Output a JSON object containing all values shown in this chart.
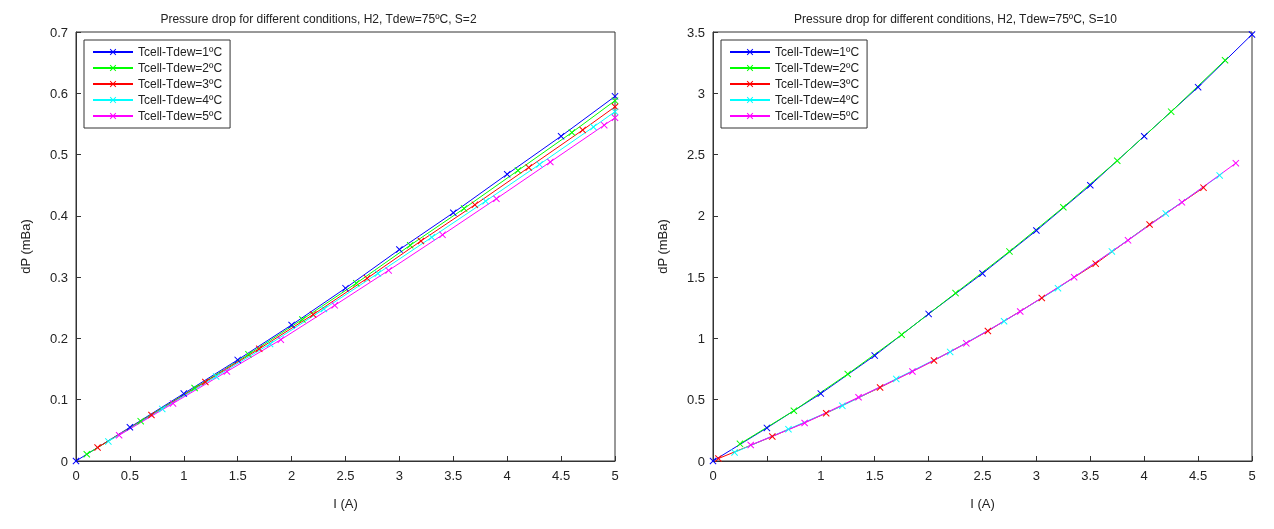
{
  "chart_data": [
    {
      "type": "line",
      "title": "Pressure drop for different conditions, H2, Tdew=75ºC, S=2",
      "xlabel": "I (A)",
      "ylabel": "dP (mBa)",
      "x": [
        0,
        0.5,
        1,
        1.5,
        2,
        2.5,
        3,
        3.5,
        4,
        4.5,
        5
      ],
      "xlim": [
        0,
        5
      ],
      "xticks": [
        0,
        0.5,
        1,
        1.5,
        2,
        2.5,
        3,
        3.5,
        4,
        4.5,
        5
      ],
      "ylim": [
        0,
        0.7
      ],
      "yticks": [
        0,
        0.1,
        0.2,
        0.3,
        0.4,
        0.5,
        0.6,
        0.7
      ],
      "grid": false,
      "legend": "top left",
      "marker": "cross",
      "line_style": "solid",
      "series": [
        {
          "name": "Tcell-Tdew=1ºC",
          "color": "#0000ff",
          "values": [
            0,
            0.055,
            0.11,
            0.165,
            0.222,
            0.282,
            0.345,
            0.405,
            0.468,
            0.53,
            0.595
          ]
        },
        {
          "name": "Tcell-Tdew=2ºC",
          "color": "#00ff00",
          "x": [
            0.1,
            0.6,
            1.1,
            1.6,
            2.1,
            2.6,
            3.1,
            3.6,
            4.1,
            4.6,
            5
          ],
          "values": [
            0.011,
            0.065,
            0.119,
            0.174,
            0.231,
            0.29,
            0.352,
            0.412,
            0.474,
            0.536,
            0.588
          ]
        },
        {
          "name": "Tcell-Tdew=3ºC",
          "color": "#ff0000",
          "x": [
            0.2,
            0.7,
            1.2,
            1.7,
            2.2,
            2.7,
            3.2,
            3.7,
            4.2,
            4.7,
            5
          ],
          "values": [
            0.022,
            0.075,
            0.129,
            0.183,
            0.239,
            0.298,
            0.359,
            0.418,
            0.479,
            0.54,
            0.578
          ]
        },
        {
          "name": "Tcell-Tdew=4ºC",
          "color": "#00ffff",
          "x": [
            0.3,
            0.8,
            1.3,
            1.8,
            2.3,
            2.8,
            3.3,
            3.8,
            4.3,
            4.8,
            5
          ],
          "values": [
            0.032,
            0.085,
            0.138,
            0.191,
            0.248,
            0.306,
            0.365,
            0.424,
            0.484,
            0.545,
            0.57
          ]
        },
        {
          "name": "Tcell-Tdew=5ºC",
          "color": "#ff00ff",
          "x": [
            0.4,
            0.9,
            1.4,
            1.9,
            2.4,
            2.9,
            3.4,
            3.9,
            4.4,
            4.9,
            5
          ],
          "values": [
            0.042,
            0.094,
            0.146,
            0.198,
            0.254,
            0.311,
            0.369,
            0.428,
            0.488,
            0.548,
            0.56
          ]
        }
      ]
    },
    {
      "type": "line",
      "title": "Pressure drop for different conditions, H2, Tdew=75ºC, S=10",
      "xlabel": "I (A)",
      "ylabel": "dP (mBa)",
      "x": [
        0,
        0.5,
        1,
        1.5,
        2,
        2.5,
        3,
        3.5,
        4,
        4.5,
        5
      ],
      "xlim": [
        0,
        5
      ],
      "xticks": [
        0,
        {
          "value": 0.5,
          "label": null
        },
        1,
        1.5,
        2,
        2.5,
        3,
        3.5,
        4,
        4.5,
        5
      ],
      "ylim": [
        0,
        3.5
      ],
      "yticks": [
        0,
        0.5,
        1,
        1.5,
        2,
        2.5,
        3,
        3.5
      ],
      "grid": false,
      "legend": "top left",
      "marker": "cross",
      "line_style": "solid",
      "series": [
        {
          "name": "Tcell-Tdew=1ºC",
          "color": "#0000ff",
          "values": [
            0,
            0.27,
            0.55,
            0.86,
            1.2,
            1.53,
            1.88,
            2.25,
            2.65,
            3.05,
            3.48
          ]
        },
        {
          "name": "Tcell-Tdew=2ºC",
          "color": "#00ff00",
          "x": [
            0.25,
            0.75,
            1.25,
            1.75,
            2.25,
            2.75,
            3.25,
            3.75,
            4.25,
            4.75
          ],
          "values": [
            0.14,
            0.41,
            0.71,
            1.03,
            1.37,
            1.71,
            2.07,
            2.45,
            2.85,
            3.27
          ]
        },
        {
          "name": "Tcell-Tdew=3ºC",
          "color": "#ff0000",
          "x": [
            0.05,
            0.55,
            1.05,
            1.55,
            2.05,
            2.55,
            3.05,
            3.55,
            4.05,
            4.55
          ],
          "values": [
            0.02,
            0.2,
            0.39,
            0.6,
            0.82,
            1.06,
            1.33,
            1.61,
            1.93,
            2.23
          ]
        },
        {
          "name": "Tcell-Tdew=4ºC",
          "color": "#00ffff",
          "x": [
            0.2,
            0.7,
            1.2,
            1.7,
            2.2,
            2.7,
            3.2,
            3.7,
            4.2,
            4.7
          ],
          "values": [
            0.07,
            0.26,
            0.45,
            0.67,
            0.89,
            1.14,
            1.41,
            1.71,
            2.02,
            2.33
          ]
        },
        {
          "name": "Tcell-Tdew=5ºC",
          "color": "#ff00ff",
          "x": [
            0.35,
            0.85,
            1.35,
            1.85,
            2.35,
            2.85,
            3.35,
            3.85,
            4.35,
            4.85
          ],
          "values": [
            0.13,
            0.31,
            0.52,
            0.73,
            0.96,
            1.22,
            1.5,
            1.8,
            2.11,
            2.43
          ]
        }
      ]
    }
  ]
}
